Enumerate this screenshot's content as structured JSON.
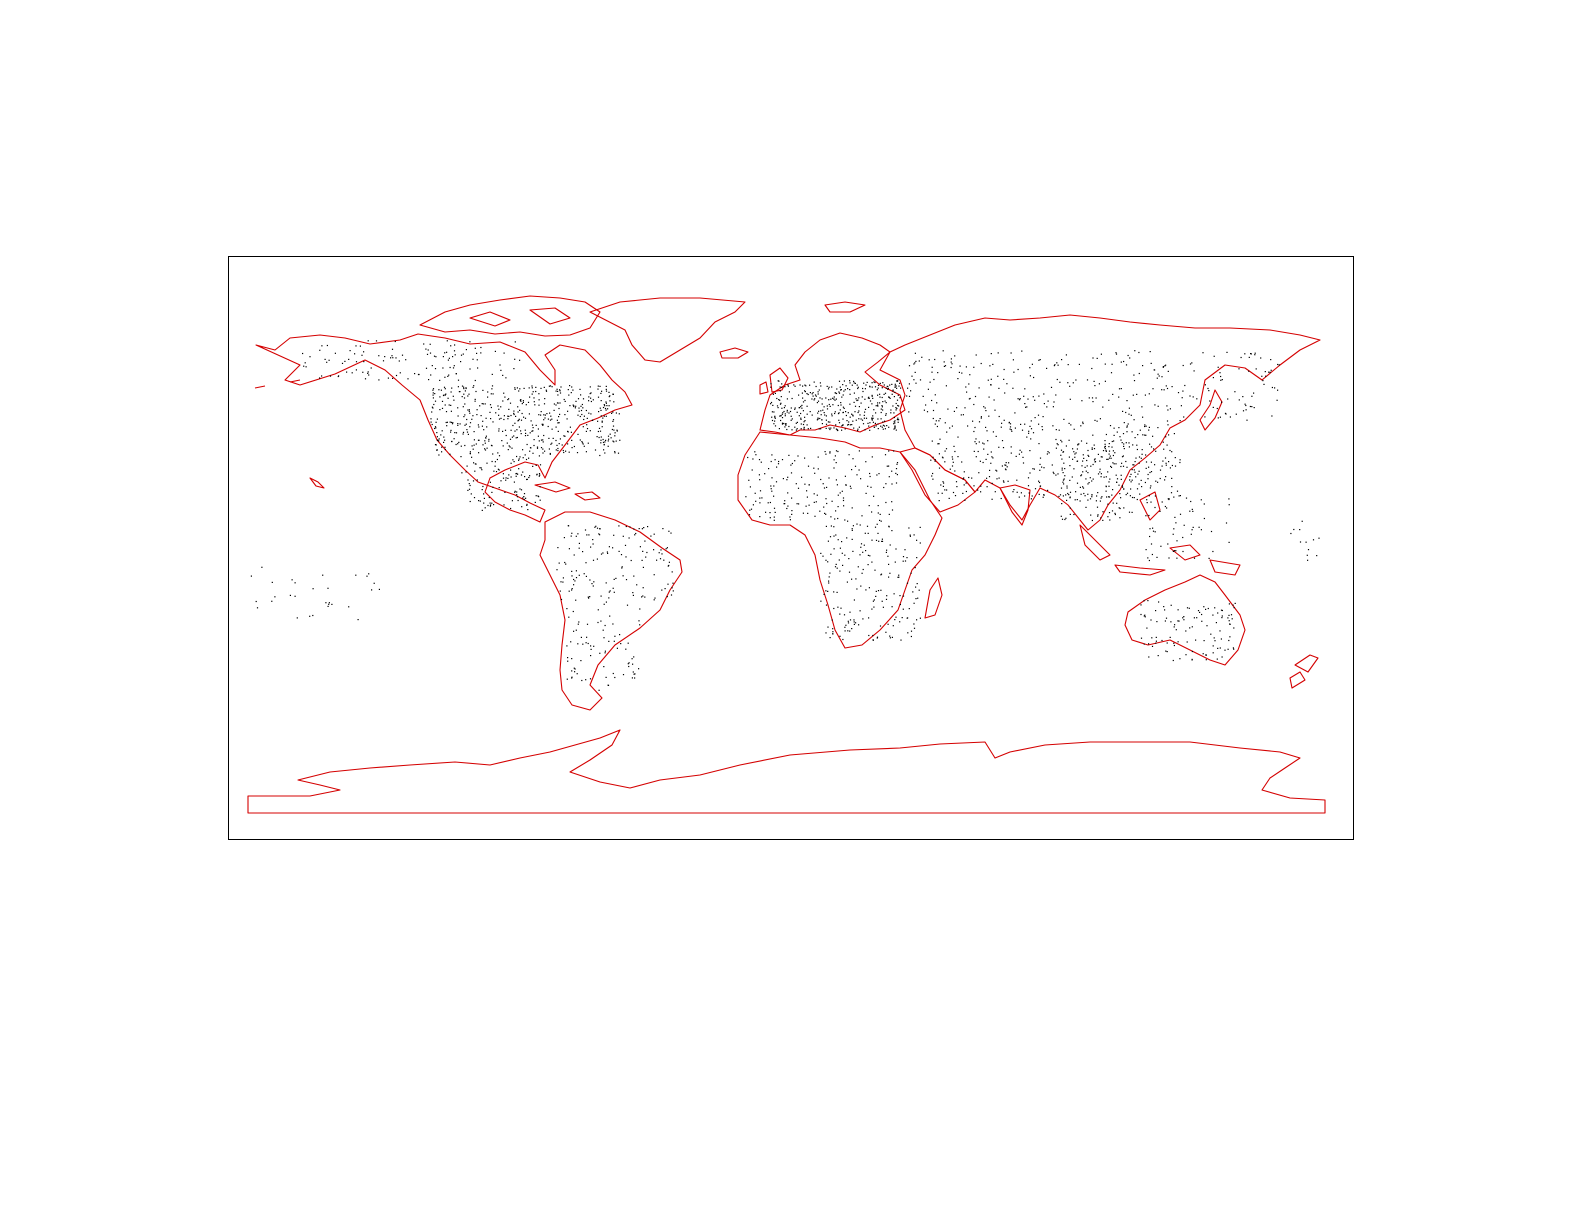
{
  "map": {
    "projection": "equirectangular",
    "extent": {
      "lon": [
        -180,
        180
      ],
      "lat": [
        -90,
        90
      ]
    },
    "coastline_color": "#d40000",
    "point_color": "#000000",
    "frame_color": "#000000",
    "background_color": "#ffffff",
    "legend": "none",
    "title": "",
    "layers": [
      "coastlines",
      "station-points"
    ]
  }
}
